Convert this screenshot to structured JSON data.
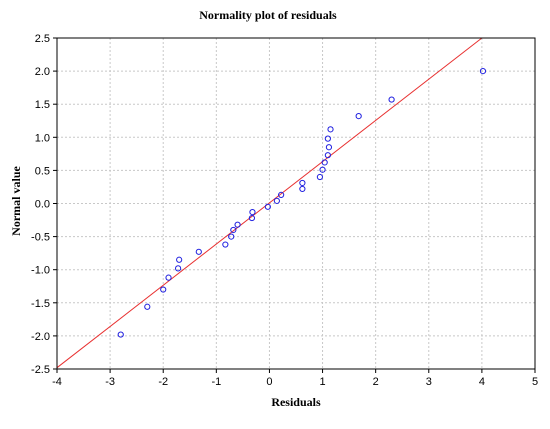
{
  "chart_data": {
    "type": "scatter",
    "title": "Normality plot of residuals",
    "xlabel": "Residuals",
    "ylabel": "Normal value",
    "xlim": [
      -4,
      5
    ],
    "ylim": [
      -2.5,
      2.5
    ],
    "xticks": [
      "-4",
      "-3",
      "-2",
      "-1",
      "0",
      "1",
      "2",
      "3",
      "4",
      "5"
    ],
    "yticks": [
      "-2.5",
      "-2.0",
      "-1.5",
      "-1.0",
      "-0.5",
      "0.0",
      "0.5",
      "1.0",
      "1.5",
      "2.0",
      "2.5"
    ],
    "grid": true,
    "colors": {
      "points": "#2020e0",
      "line": "#e83030",
      "grid": "#c8c8c8"
    },
    "series": [
      {
        "values": [
          [
            -2.8,
            -1.98
          ],
          [
            -2.3,
            -1.56
          ],
          [
            -2.0,
            -1.3
          ],
          [
            -1.9,
            -1.12
          ],
          [
            -1.72,
            -0.98
          ],
          [
            -1.7,
            -0.85
          ],
          [
            -1.33,
            -0.73
          ],
          [
            -0.83,
            -0.62
          ],
          [
            -0.72,
            -0.5
          ],
          [
            -0.68,
            -0.4
          ],
          [
            -0.6,
            -0.32
          ],
          [
            -0.33,
            -0.22
          ],
          [
            -0.32,
            -0.13
          ],
          [
            -0.03,
            -0.05
          ],
          [
            0.14,
            0.04
          ],
          [
            0.22,
            0.13
          ],
          [
            0.62,
            0.22
          ],
          [
            0.62,
            0.31
          ],
          [
            0.95,
            0.4
          ],
          [
            1.0,
            0.51
          ],
          [
            1.04,
            0.62
          ],
          [
            1.1,
            0.73
          ],
          [
            1.12,
            0.85
          ],
          [
            1.1,
            0.98
          ],
          [
            1.15,
            1.12
          ],
          [
            1.68,
            1.32
          ],
          [
            2.3,
            1.57
          ],
          [
            4.02,
            2.0
          ]
        ]
      }
    ],
    "fit_line": {
      "x": [
        -4,
        4.0
      ],
      "y": [
        -2.48,
        2.5
      ]
    }
  }
}
